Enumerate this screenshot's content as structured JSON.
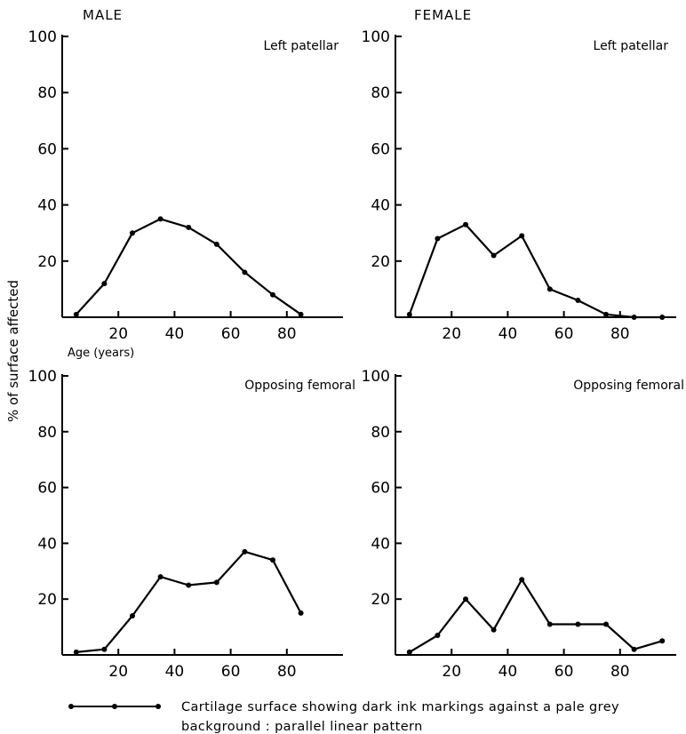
{
  "headers": {
    "male": "MALE",
    "female": "FEMALE"
  },
  "ylabel": "% of surface affected",
  "age_label": "Age (years)",
  "legend": {
    "line1": "Cartilage surface showing dark ink markings against a pale grey",
    "line2": "background : parallel linear pattern"
  },
  "chart_data": [
    {
      "type": "line",
      "title": "Left patellar",
      "xlim": [
        0,
        100
      ],
      "ylim": [
        0,
        100
      ],
      "yticks": [
        20,
        40,
        60,
        80,
        100
      ],
      "yticklabels": [
        "20",
        "40",
        "60",
        "80",
        "100"
      ],
      "xticks": [
        20,
        40,
        60,
        80
      ],
      "xticklabels": [
        "20",
        "40",
        "60",
        "80"
      ],
      "series": [
        {
          "x": [
            5,
            15,
            25,
            35,
            45,
            55,
            65,
            75,
            85
          ],
          "y": [
            1,
            12,
            30,
            35,
            32,
            26,
            16,
            8,
            1
          ]
        }
      ]
    },
    {
      "type": "line",
      "title": "Left patellar",
      "xlim": [
        0,
        100
      ],
      "ylim": [
        0,
        100
      ],
      "yticks": [
        20,
        40,
        60,
        80,
        100
      ],
      "yticklabels": [
        "20",
        "40",
        "60",
        "80",
        "100"
      ],
      "xticks": [
        20,
        40,
        60,
        80
      ],
      "xticklabels": [
        "20",
        "40",
        "60",
        "80"
      ],
      "series": [
        {
          "x": [
            5,
            15,
            25,
            35,
            45,
            55,
            65,
            75,
            85,
            95
          ],
          "y": [
            1,
            28,
            33,
            22,
            29,
            10,
            6,
            1,
            0,
            0
          ]
        }
      ]
    },
    {
      "type": "line",
      "title": "Opposing femoral",
      "xlim": [
        0,
        100
      ],
      "ylim": [
        0,
        100
      ],
      "yticks": [
        20,
        40,
        60,
        80,
        100
      ],
      "yticklabels": [
        "20",
        "40",
        "60",
        "80",
        "100"
      ],
      "xticks": [
        20,
        40,
        60,
        80
      ],
      "xticklabels": [
        "20",
        "40",
        "60",
        "80"
      ],
      "series": [
        {
          "x": [
            5,
            15,
            25,
            35,
            45,
            55,
            65,
            75,
            85
          ],
          "y": [
            1,
            2,
            14,
            28,
            25,
            26,
            37,
            34,
            15
          ]
        }
      ]
    },
    {
      "type": "line",
      "title": "Opposing femoral",
      "xlim": [
        0,
        100
      ],
      "ylim": [
        0,
        100
      ],
      "yticks": [
        20,
        40,
        60,
        80,
        100
      ],
      "yticklabels": [
        "20",
        "40",
        "60",
        "80",
        "100"
      ],
      "xticks": [
        20,
        40,
        60,
        80
      ],
      "xticklabels": [
        "20",
        "40",
        "60",
        "80"
      ],
      "series": [
        {
          "x": [
            5,
            15,
            25,
            35,
            45,
            55,
            65,
            75,
            85,
            95
          ],
          "y": [
            1,
            7,
            20,
            9,
            27,
            11,
            11,
            11,
            2,
            5
          ]
        }
      ]
    }
  ]
}
